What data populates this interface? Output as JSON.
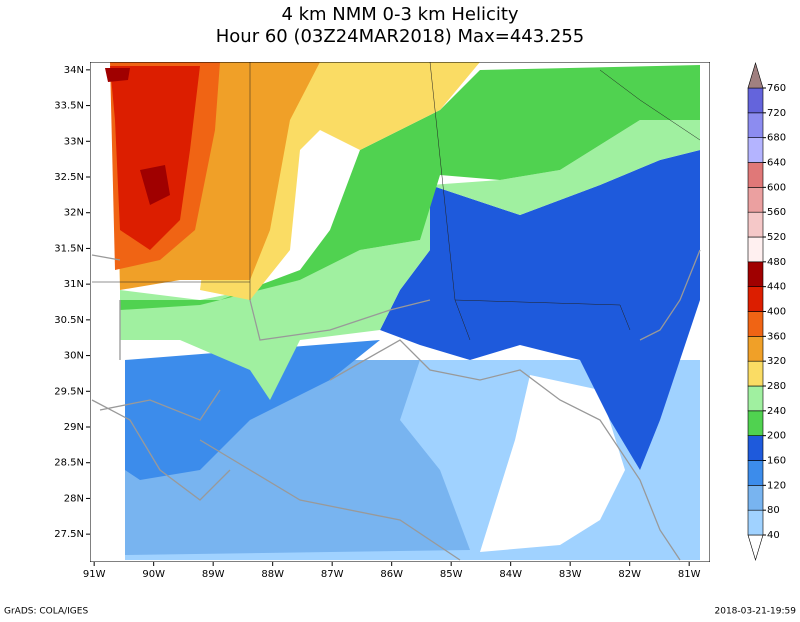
{
  "chart_data": {
    "type": "filled-contour-map",
    "title": "4 km NMM 0-3 km Helicity",
    "subtitle": "Hour 60 (03Z24MAR2018) Max=443.255",
    "xlim": [
      -91.07,
      -80.65
    ],
    "ylim": [
      27.11,
      34.11
    ],
    "xticks": [
      {
        "value": -91,
        "label": "91W"
      },
      {
        "value": -90,
        "label": "90W"
      },
      {
        "value": -89,
        "label": "89W"
      },
      {
        "value": -88,
        "label": "88W"
      },
      {
        "value": -87,
        "label": "87W"
      },
      {
        "value": -86,
        "label": "86W"
      },
      {
        "value": -85,
        "label": "85W"
      },
      {
        "value": -84,
        "label": "84W"
      },
      {
        "value": -83,
        "label": "83W"
      },
      {
        "value": -82,
        "label": "82W"
      },
      {
        "value": -81,
        "label": "81W"
      }
    ],
    "yticks": [
      {
        "value": 27.5,
        "label": "27.5N"
      },
      {
        "value": 28,
        "label": "28N"
      },
      {
        "value": 28.5,
        "label": "28.5N"
      },
      {
        "value": 29,
        "label": "29N"
      },
      {
        "value": 29.5,
        "label": "29.5N"
      },
      {
        "value": 30,
        "label": "30N"
      },
      {
        "value": 30.5,
        "label": "30.5N"
      },
      {
        "value": 31,
        "label": "31N"
      },
      {
        "value": 31.5,
        "label": "31.5N"
      },
      {
        "value": 32,
        "label": "32N"
      },
      {
        "value": 32.5,
        "label": "32.5N"
      },
      {
        "value": 33,
        "label": "33N"
      },
      {
        "value": 33.5,
        "label": "33.5N"
      },
      {
        "value": 34,
        "label": "34N"
      }
    ],
    "colorbar": {
      "levels": [
        40,
        80,
        120,
        160,
        200,
        240,
        280,
        320,
        360,
        400,
        440,
        480,
        520,
        560,
        600,
        640,
        680,
        720,
        760
      ],
      "colors": [
        "#ffffff",
        "#a0d2ff",
        "#78b4f0",
        "#3c8ceb",
        "#1e5adc",
        "#50d250",
        "#a0f0a0",
        "#fadc64",
        "#f0a028",
        "#f06414",
        "#dc1e00",
        "#a00000",
        "#fff0f0",
        "#f5c8c8",
        "#eba0a0",
        "#e07878",
        "#b4b4ff",
        "#8c8cf0",
        "#6464dc",
        "#a08080"
      ]
    },
    "footer_left": "GrADS: COLA/IGES",
    "footer_right": "2018-03-21-19:59"
  }
}
